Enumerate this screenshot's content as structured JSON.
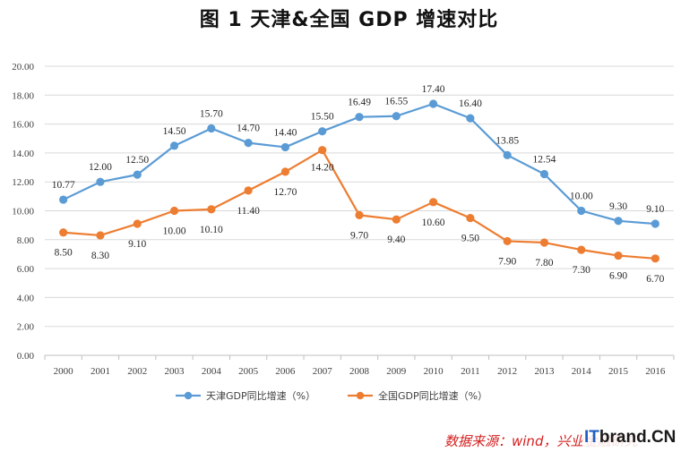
{
  "chart_data": {
    "type": "line",
    "title": "图 1   天津&全国 GDP 增速对比",
    "xlabel": "",
    "ylabel": "",
    "x": [
      "2000",
      "2001",
      "2002",
      "2003",
      "2004",
      "2005",
      "2006",
      "2007",
      "2008",
      "2009",
      "2010",
      "2011",
      "2012",
      "2013",
      "2014",
      "2015",
      "2016"
    ],
    "ylim": [
      0,
      20
    ],
    "yticks": [
      "0.00",
      "2.00",
      "4.00",
      "6.00",
      "8.00",
      "10.00",
      "12.00",
      "14.00",
      "16.00",
      "18.00",
      "20.00"
    ],
    "grid": true,
    "legend_position": "bottom",
    "series": [
      {
        "name": "天津GDP同比增速（%）",
        "color": "#5b9bd5",
        "values": [
          10.77,
          12.0,
          12.5,
          14.5,
          15.7,
          14.7,
          14.4,
          15.5,
          16.49,
          16.55,
          17.4,
          16.4,
          13.85,
          12.54,
          10.0,
          9.3,
          9.1
        ],
        "labels": [
          "10.77",
          "12.00",
          "12.50",
          "14.50",
          "15.70",
          "14.70",
          "14.40",
          "15.50",
          "16.49",
          "16.55",
          "17.40",
          "16.40",
          "13.85",
          "12.54",
          "10.00",
          "9.30",
          "9.10"
        ]
      },
      {
        "name": "全国GDP同比增速（%）",
        "color": "#ed7d31",
        "values": [
          8.5,
          8.3,
          9.1,
          10.0,
          10.1,
          11.4,
          12.7,
          14.2,
          9.7,
          9.4,
          10.6,
          9.5,
          7.9,
          7.8,
          7.3,
          6.9,
          6.7
        ],
        "labels": [
          "8.50",
          "8.30",
          "9.10",
          "10.00",
          "10.10",
          "11.40",
          "12.70",
          "14.20",
          "9.70",
          "9.40",
          "10.60",
          "9.50",
          "7.90",
          "7.80",
          "7.30",
          "6.90",
          "6.70"
        ]
      }
    ]
  },
  "source": "数据来源：wind，兴业金融研究",
  "watermark": {
    "prefix": "IT",
    "rest": "brand.CN"
  }
}
